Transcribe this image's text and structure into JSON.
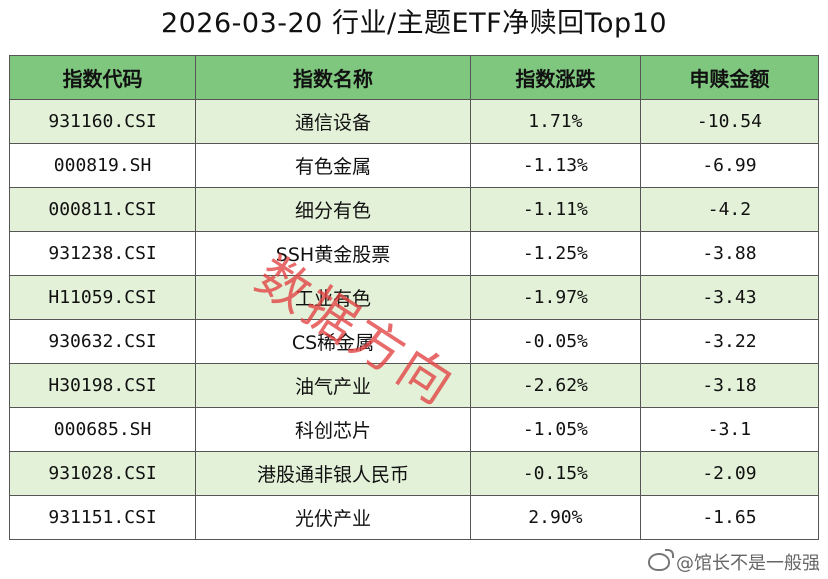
{
  "title": "2026-03-20 行业/主题ETF净赎回Top10",
  "headers": [
    "指数代码",
    "指数名称",
    "指数涨跌",
    "申赎金额"
  ],
  "rows": [
    {
      "code": "931160.CSI",
      "name": "通信设备",
      "change": "1.71%",
      "flow": "-10.54"
    },
    {
      "code": "000819.SH",
      "name": "有色金属",
      "change": "-1.13%",
      "flow": "-6.99"
    },
    {
      "code": "000811.CSI",
      "name": "细分有色",
      "change": "-1.11%",
      "flow": "-4.2"
    },
    {
      "code": "931238.CSI",
      "name": "SSH黄金股票",
      "change": "-1.25%",
      "flow": "-3.88"
    },
    {
      "code": "H11059.CSI",
      "name": "工业有色",
      "change": "-1.97%",
      "flow": "-3.43"
    },
    {
      "code": "930632.CSI",
      "name": "CS稀金属",
      "change": "-0.05%",
      "flow": "-3.22"
    },
    {
      "code": "H30198.CSI",
      "name": "油气产业",
      "change": "-2.62%",
      "flow": "-3.18"
    },
    {
      "code": "000685.SH",
      "name": "科创芯片",
      "change": "-1.05%",
      "flow": "-3.1"
    },
    {
      "code": "931028.CSI",
      "name": "港股通非银人民币",
      "change": "-0.15%",
      "flow": "-2.09"
    },
    {
      "code": "931151.CSI",
      "name": "光伏产业",
      "change": "2.90%",
      "flow": "-1.65"
    }
  ],
  "watermark": "数据方向",
  "credit": "@馆长不是一般强",
  "colors": {
    "header_bg": "#7fc77f",
    "stripe_bg": "#e3f1d8",
    "watermark": "#e24040"
  }
}
